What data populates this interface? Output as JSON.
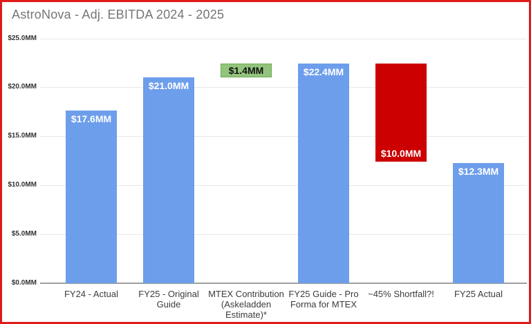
{
  "title": "AstroNova - Adj. EBITDA 2024 - 2025",
  "frame": {
    "border_color": "#e01a1a",
    "background": "#ffffff"
  },
  "chart_data": {
    "type": "bar",
    "title": "AstroNova - Adj. EBITDA 2024 - 2025",
    "xlabel": "",
    "ylabel": "",
    "ylim": [
      0,
      25
    ],
    "ytick_interval": 5,
    "yticks": [
      "$0.0MM",
      "$5.0MM",
      "$10.0MM",
      "$15.0MM",
      "$20.0MM",
      "$25.0MM"
    ],
    "grid": true,
    "gridline_color": "#e8e8e8",
    "axis_line_color": "#9e9e9e",
    "legend": "none",
    "categories": [
      "FY24 - Actual",
      "FY25 - Original\nGuide",
      "MTEX Contribution\n(Askeladden\nEstimate)*",
      "FY25 Guide - Pro\nForma for MTEX",
      "~45% Shortfall?!",
      "FY25 Actual"
    ],
    "bars": [
      {
        "category": "FY24 - Actual",
        "start": 0,
        "end": 17.6,
        "value": 17.6,
        "value_label": "$17.6MM",
        "color": "#6d9eeb",
        "label_color": "#ffffff",
        "label_pos": "top",
        "border": ""
      },
      {
        "category": "FY25 - Original Guide",
        "start": 0,
        "end": 21.0,
        "value": 21.0,
        "value_label": "$21.0MM",
        "color": "#6d9eeb",
        "label_color": "#ffffff",
        "label_pos": "top",
        "border": ""
      },
      {
        "category": "MTEX Contribution (Askeladden Estimate)*",
        "start": 21.0,
        "end": 22.4,
        "value": 1.4,
        "value_label": "$1.4MM",
        "color": "#93c47d",
        "label_color": "#111111",
        "label_pos": "center",
        "border": "#6aa84f"
      },
      {
        "category": "FY25 Guide - Pro Forma for MTEX",
        "start": 0,
        "end": 22.4,
        "value": 22.4,
        "value_label": "$22.4MM",
        "color": "#6d9eeb",
        "label_color": "#ffffff",
        "label_pos": "top",
        "border": ""
      },
      {
        "category": "~45% Shortfall?!",
        "start": 12.4,
        "end": 22.4,
        "value": 10.0,
        "value_label": "$10.0MM",
        "color": "#cc0000",
        "label_color": "#ffffff",
        "label_pos": "bottom",
        "border": ""
      },
      {
        "category": "FY25 Actual",
        "start": 0,
        "end": 12.3,
        "value": 12.3,
        "value_label": "$12.3MM",
        "color": "#6d9eeb",
        "label_color": "#ffffff",
        "label_pos": "top",
        "border": ""
      }
    ]
  }
}
